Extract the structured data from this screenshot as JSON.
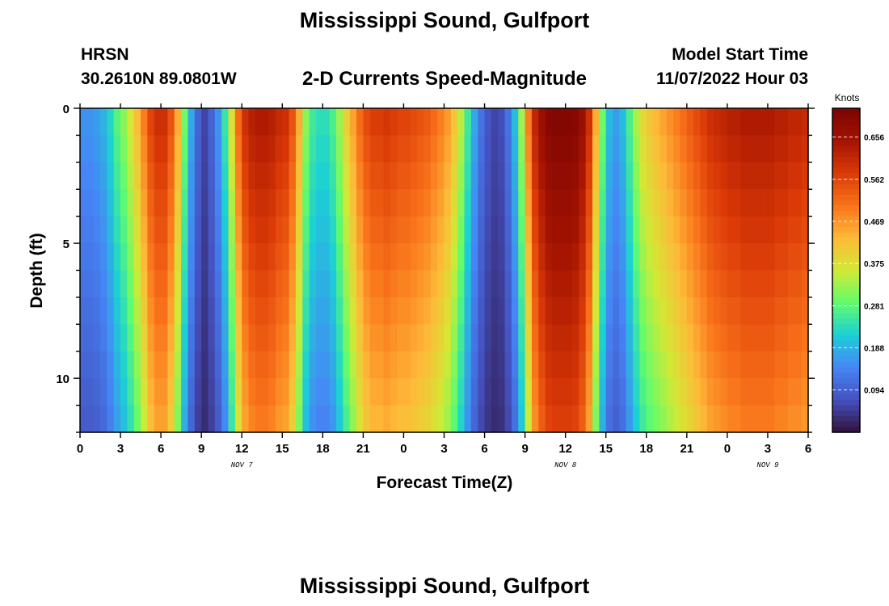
{
  "header": {
    "title": "Mississippi Sound, Gulfport",
    "station_code": "HRSN",
    "station_coords": "30.2610N  89.0801W",
    "subtitle": "2-D Currents Speed-Magnitude",
    "model_start_label": "Model Start Time",
    "model_start_value": "11/07/2022 Hour 03"
  },
  "footer": {
    "title": "Mississippi Sound, Gulfport"
  },
  "chart_data": {
    "type": "heatmap",
    "title": "2-D Currents Speed-Magnitude",
    "xlabel": "Forecast Time(Z)",
    "ylabel": "Depth (ft)",
    "x_range_hours": [
      0,
      54
    ],
    "x_tick_labels": [
      "0",
      "3",
      "6",
      "9",
      "12",
      "15",
      "18",
      "21",
      "0",
      "3",
      "6",
      "9",
      "12",
      "15",
      "18",
      "21",
      "0",
      "3",
      "6"
    ],
    "date_labels": [
      {
        "hour": 12,
        "text": "NOV 7"
      },
      {
        "hour": 36,
        "text": "NOV 8"
      },
      {
        "hour": 51,
        "text": "NOV 9"
      }
    ],
    "y_range_ft": [
      0,
      12
    ],
    "y_reversed": true,
    "y_tick_labels": [
      "0",
      "5",
      "10"
    ],
    "colorbar": {
      "label": "Knots",
      "range": [
        0.0,
        0.72
      ],
      "tick_values": [
        0.094,
        0.188,
        0.281,
        0.375,
        0.469,
        0.562,
        0.656
      ],
      "tick_labels": [
        "0.094",
        "0.188",
        "0.281",
        "0.375",
        "0.469",
        "0.562",
        "0.656"
      ]
    },
    "speed_profile_knots": {
      "hours": [
        0,
        0.5,
        1,
        1.5,
        2,
        2.5,
        3,
        3.5,
        4,
        4.5,
        5,
        5.5,
        6,
        6.5,
        7,
        7.5,
        8,
        8.5,
        9,
        9.5,
        10,
        10.5,
        11,
        11.5,
        12,
        12.5,
        13,
        13.5,
        14,
        14.5,
        15,
        15.5,
        16,
        16.5,
        17,
        17.5,
        18,
        18.5,
        19,
        19.5,
        20,
        20.5,
        21,
        21.5,
        22,
        22.5,
        23,
        23.5,
        24,
        24.5,
        25,
        25.5,
        26,
        26.5,
        27,
        27.5,
        28,
        28.5,
        29,
        29.5,
        30,
        30.5,
        31,
        31.5,
        32,
        32.5,
        33,
        33.5,
        34,
        34.5,
        35,
        35.5,
        36,
        36.5,
        37,
        37.5,
        38,
        38.5,
        39,
        39.5,
        40,
        40.5,
        41,
        41.5,
        42,
        42.5,
        43,
        43.5,
        44,
        44.5,
        45,
        45.5,
        46,
        46.5,
        47,
        47.5,
        48,
        48.5,
        49,
        49.5,
        50,
        50.5,
        51,
        51.5,
        52,
        52.5,
        53,
        53.5,
        54
      ],
      "surface": [
        0.16,
        0.16,
        0.17,
        0.19,
        0.23,
        0.28,
        0.32,
        0.37,
        0.43,
        0.5,
        0.57,
        0.6,
        0.6,
        0.55,
        0.45,
        0.3,
        0.18,
        0.1,
        0.06,
        0.1,
        0.16,
        0.25,
        0.38,
        0.52,
        0.6,
        0.63,
        0.64,
        0.64,
        0.63,
        0.61,
        0.6,
        0.55,
        0.45,
        0.32,
        0.26,
        0.24,
        0.24,
        0.27,
        0.33,
        0.4,
        0.46,
        0.52,
        0.56,
        0.58,
        0.58,
        0.59,
        0.58,
        0.57,
        0.57,
        0.56,
        0.55,
        0.54,
        0.52,
        0.5,
        0.47,
        0.42,
        0.35,
        0.26,
        0.18,
        0.12,
        0.08,
        0.06,
        0.07,
        0.12,
        0.2,
        0.33,
        0.5,
        0.62,
        0.67,
        0.7,
        0.71,
        0.71,
        0.71,
        0.7,
        0.67,
        0.6,
        0.45,
        0.3,
        0.2,
        0.17,
        0.2,
        0.27,
        0.34,
        0.39,
        0.42,
        0.44,
        0.46,
        0.48,
        0.5,
        0.52,
        0.54,
        0.56,
        0.58,
        0.6,
        0.61,
        0.62,
        0.63,
        0.63,
        0.64,
        0.64,
        0.64,
        0.64,
        0.64,
        0.63,
        0.63,
        0.62,
        0.62,
        0.61,
        0.61
      ],
      "surface_units": "knots",
      "depth_factor_note": "Values decrease with depth in the rendered heatmap"
    }
  }
}
